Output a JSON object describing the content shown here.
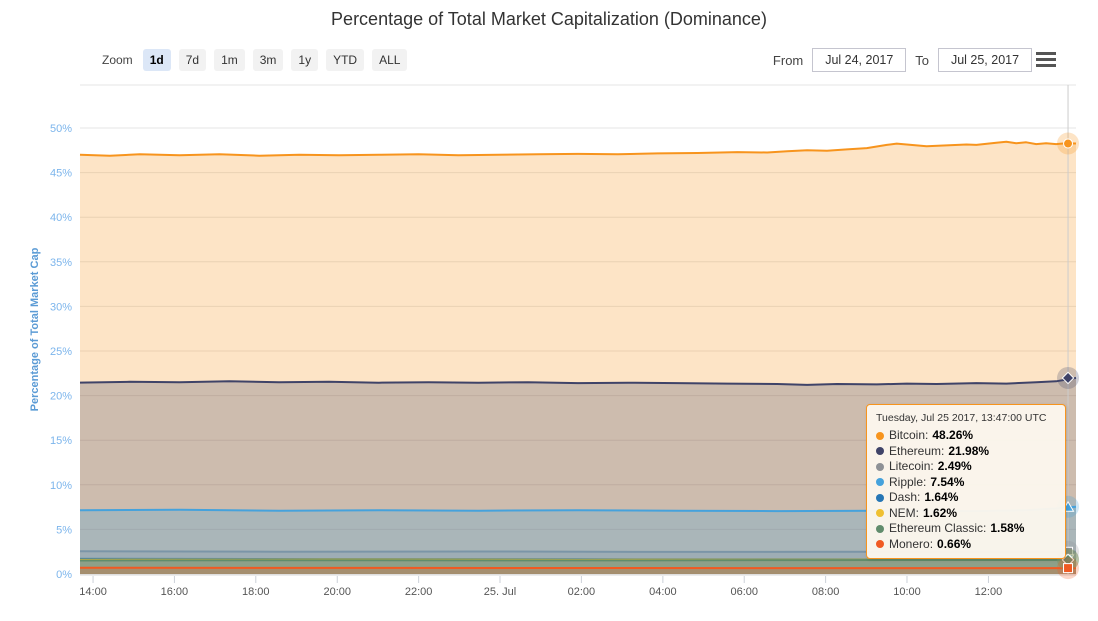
{
  "title": "Percentage of Total Market Capitalization (Dominance)",
  "range_selector": {
    "zoom_label": "Zoom",
    "buttons": [
      {
        "label": "1d",
        "selected": true
      },
      {
        "label": "7d",
        "selected": false
      },
      {
        "label": "1m",
        "selected": false
      },
      {
        "label": "3m",
        "selected": false
      },
      {
        "label": "1y",
        "selected": false
      },
      {
        "label": "YTD",
        "selected": false
      },
      {
        "label": "ALL",
        "selected": false
      }
    ],
    "from_label": "From",
    "from_value": "Jul 24, 2017",
    "to_label": "To",
    "to_value": "Jul 25, 2017",
    "menu_icon": "hamburger-icon"
  },
  "tooltip": {
    "header": "Tuesday, Jul 25 2017, 13:47:00 UTC",
    "rows": [
      {
        "name": "Bitcoin",
        "value": "48.26%",
        "color": "#f7941d"
      },
      {
        "name": "Ethereum",
        "value": "21.98%",
        "color": "#3f4368"
      },
      {
        "name": "Litecoin",
        "value": "2.49%",
        "color": "#8e9196"
      },
      {
        "name": "Ripple",
        "value": "7.54%",
        "color": "#45a2dc"
      },
      {
        "name": "Dash",
        "value": "1.64%",
        "color": "#2676b5"
      },
      {
        "name": "NEM",
        "value": "1.62%",
        "color": "#efc031"
      },
      {
        "name": "Ethereum Classic",
        "value": "1.58%",
        "color": "#618c6c"
      },
      {
        "name": "Monero",
        "value": "0.66%",
        "color": "#f05a22"
      }
    ]
  },
  "chart_data": {
    "type": "area",
    "stacked": false,
    "title": "Percentage of Total Market Capitalization (Dominance)",
    "ylabel": "Percentage of Total Market Cap",
    "xlabel": "",
    "ylim": [
      0,
      54.8
    ],
    "grid": true,
    "x_range": [
      "Jul 24, 2017 13:47 UTC",
      "Jul 25, 2017 13:47 UTC"
    ],
    "cursor_t": 0.992,
    "yticks": [
      {
        "value": 0,
        "label": "0%"
      },
      {
        "value": 5,
        "label": "5%"
      },
      {
        "value": 10,
        "label": "10%"
      },
      {
        "value": 15,
        "label": "15%"
      },
      {
        "value": 20,
        "label": "20%"
      },
      {
        "value": 25,
        "label": "25%"
      },
      {
        "value": 30,
        "label": "30%"
      },
      {
        "value": 35,
        "label": "35%"
      },
      {
        "value": 40,
        "label": "40%"
      },
      {
        "value": 45,
        "label": "45%"
      },
      {
        "value": 50,
        "label": "50%"
      }
    ],
    "xticks": [
      {
        "t": 0.0131,
        "label": "14:00"
      },
      {
        "t": 0.0948,
        "label": "16:00"
      },
      {
        "t": 0.1765,
        "label": "18:00"
      },
      {
        "t": 0.2583,
        "label": "20:00"
      },
      {
        "t": 0.34,
        "label": "22:00"
      },
      {
        "t": 0.4217,
        "label": "25. Jul"
      },
      {
        "t": 0.5034,
        "label": "02:00"
      },
      {
        "t": 0.5852,
        "label": "04:00"
      },
      {
        "t": 0.6669,
        "label": "06:00"
      },
      {
        "t": 0.7486,
        "label": "08:00"
      },
      {
        "t": 0.8303,
        "label": "10:00"
      },
      {
        "t": 0.9121,
        "label": "12:00"
      }
    ],
    "fill_opacity": 0.25,
    "series": [
      {
        "name": "Bitcoin",
        "color": "#f7941d",
        "marker": "circle",
        "end_value": 48.26,
        "points": [
          [
            0,
            47.0
          ],
          [
            0.03,
            46.9
          ],
          [
            0.06,
            47.05
          ],
          [
            0.1,
            46.95
          ],
          [
            0.14,
            47.05
          ],
          [
            0.18,
            46.9
          ],
          [
            0.22,
            47.0
          ],
          [
            0.26,
            46.95
          ],
          [
            0.3,
            47.0
          ],
          [
            0.34,
            47.05
          ],
          [
            0.38,
            46.95
          ],
          [
            0.42,
            47.0
          ],
          [
            0.46,
            47.05
          ],
          [
            0.5,
            47.1
          ],
          [
            0.54,
            47.05
          ],
          [
            0.58,
            47.15
          ],
          [
            0.62,
            47.2
          ],
          [
            0.66,
            47.3
          ],
          [
            0.69,
            47.25
          ],
          [
            0.71,
            47.4
          ],
          [
            0.73,
            47.5
          ],
          [
            0.75,
            47.45
          ],
          [
            0.77,
            47.6
          ],
          [
            0.79,
            47.75
          ],
          [
            0.81,
            48.1
          ],
          [
            0.82,
            48.25
          ],
          [
            0.83,
            48.15
          ],
          [
            0.85,
            47.95
          ],
          [
            0.87,
            48.05
          ],
          [
            0.89,
            48.15
          ],
          [
            0.9,
            48.1
          ],
          [
            0.92,
            48.35
          ],
          [
            0.93,
            48.45
          ],
          [
            0.94,
            48.3
          ],
          [
            0.95,
            48.4
          ],
          [
            0.96,
            48.2
          ],
          [
            0.97,
            48.3
          ],
          [
            0.98,
            48.2
          ],
          [
            0.99,
            48.3
          ],
          [
            1,
            48.26
          ]
        ]
      },
      {
        "name": "Ethereum",
        "color": "#3f4368",
        "marker": "diamond",
        "end_value": 21.98,
        "points": [
          [
            0,
            21.45
          ],
          [
            0.05,
            21.55
          ],
          [
            0.1,
            21.5
          ],
          [
            0.15,
            21.6
          ],
          [
            0.2,
            21.5
          ],
          [
            0.25,
            21.55
          ],
          [
            0.3,
            21.45
          ],
          [
            0.35,
            21.5
          ],
          [
            0.4,
            21.45
          ],
          [
            0.45,
            21.5
          ],
          [
            0.5,
            21.4
          ],
          [
            0.55,
            21.45
          ],
          [
            0.6,
            21.4
          ],
          [
            0.65,
            21.35
          ],
          [
            0.7,
            21.3
          ],
          [
            0.73,
            21.2
          ],
          [
            0.76,
            21.3
          ],
          [
            0.8,
            21.25
          ],
          [
            0.83,
            21.35
          ],
          [
            0.86,
            21.3
          ],
          [
            0.9,
            21.4
          ],
          [
            0.93,
            21.35
          ],
          [
            0.96,
            21.5
          ],
          [
            0.98,
            21.6
          ],
          [
            1,
            21.98
          ]
        ]
      },
      {
        "name": "Litecoin",
        "color": "#8e9196",
        "marker": "square",
        "end_value": 2.49,
        "points": [
          [
            0,
            2.55
          ],
          [
            0.2,
            2.5
          ],
          [
            0.4,
            2.52
          ],
          [
            0.6,
            2.48
          ],
          [
            0.8,
            2.5
          ],
          [
            1,
            2.49
          ]
        ]
      },
      {
        "name": "Ripple",
        "color": "#45a2dc",
        "marker": "triangle",
        "end_value": 7.54,
        "points": [
          [
            0,
            7.15
          ],
          [
            0.1,
            7.2
          ],
          [
            0.2,
            7.1
          ],
          [
            0.3,
            7.15
          ],
          [
            0.4,
            7.1
          ],
          [
            0.5,
            7.15
          ],
          [
            0.6,
            7.1
          ],
          [
            0.7,
            7.05
          ],
          [
            0.8,
            7.1
          ],
          [
            0.9,
            7.05
          ],
          [
            0.95,
            7.15
          ],
          [
            0.98,
            7.35
          ],
          [
            1,
            7.54
          ]
        ]
      },
      {
        "name": "Dash",
        "color": "#2676b5",
        "marker": "triangle-down",
        "end_value": 1.64,
        "points": [
          [
            0,
            1.7
          ],
          [
            0.25,
            1.68
          ],
          [
            0.5,
            1.66
          ],
          [
            0.75,
            1.65
          ],
          [
            1,
            1.64
          ]
        ]
      },
      {
        "name": "NEM",
        "color": "#efc031",
        "marker": "circle",
        "end_value": 1.62,
        "points": [
          [
            0,
            1.6
          ],
          [
            0.25,
            1.62
          ],
          [
            0.5,
            1.6
          ],
          [
            0.75,
            1.61
          ],
          [
            1,
            1.62
          ]
        ]
      },
      {
        "name": "Ethereum Classic",
        "color": "#618c6c",
        "marker": "diamond",
        "end_value": 1.58,
        "points": [
          [
            0,
            1.52
          ],
          [
            0.25,
            1.55
          ],
          [
            0.5,
            1.53
          ],
          [
            0.75,
            1.56
          ],
          [
            1,
            1.58
          ]
        ]
      },
      {
        "name": "Monero",
        "color": "#f05a22",
        "marker": "square",
        "end_value": 0.66,
        "points": [
          [
            0,
            0.7
          ],
          [
            0.25,
            0.68
          ],
          [
            0.5,
            0.67
          ],
          [
            0.75,
            0.66
          ],
          [
            1,
            0.66
          ]
        ]
      }
    ]
  }
}
